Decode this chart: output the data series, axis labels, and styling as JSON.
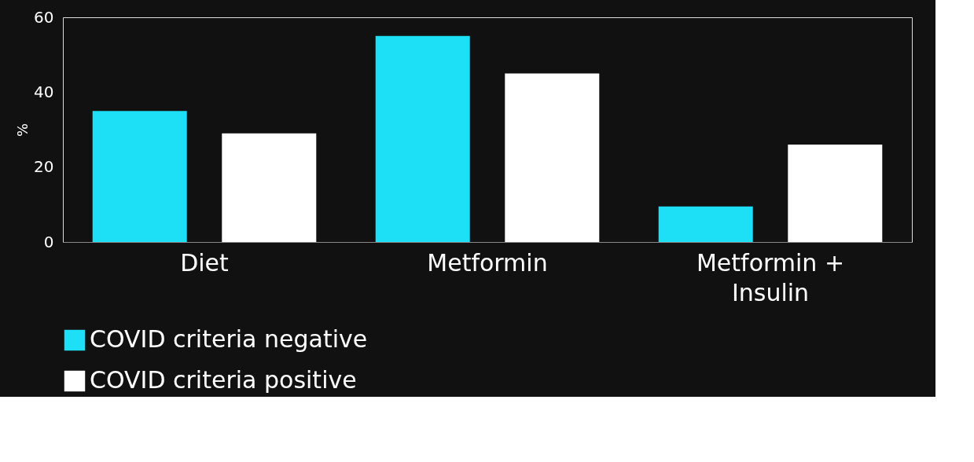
{
  "chart_data": {
    "type": "bar",
    "ylabel": "%",
    "categories": [
      "Diet",
      "Metformin",
      "Metformin + Insulin"
    ],
    "series": [
      {
        "name": "COVID criteria negative",
        "color": "#1ddff5",
        "values": [
          35,
          55,
          9.5
        ]
      },
      {
        "name": "COVID criteria positive",
        "color": "#ffffff",
        "values": [
          29,
          45,
          26
        ]
      }
    ],
    "ylim": [
      0,
      60
    ],
    "yticks": [
      0,
      20,
      40,
      60
    ],
    "grid": false,
    "legend": "bottom"
  }
}
